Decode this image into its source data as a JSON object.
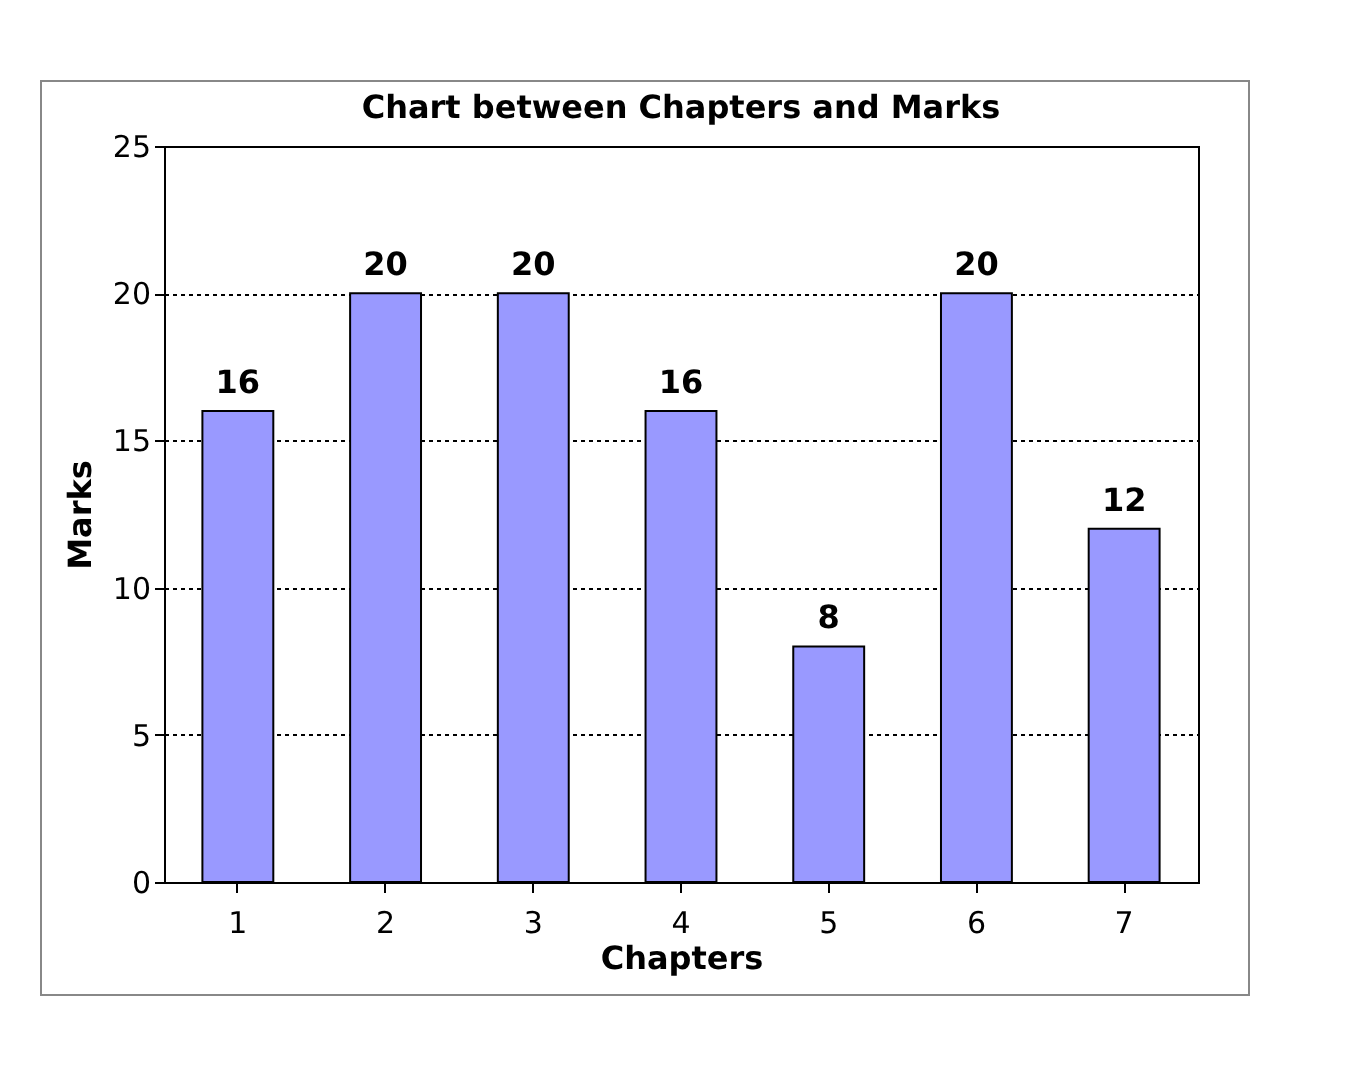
{
  "chart_data": {
    "type": "bar",
    "title": "Chart between Chapters and Marks",
    "xlabel": "Chapters",
    "ylabel": "Marks",
    "categories": [
      "1",
      "2",
      "3",
      "4",
      "5",
      "6",
      "7"
    ],
    "values": [
      16,
      20,
      20,
      16,
      8,
      20,
      12
    ],
    "color": "#9999ff",
    "ylim": [
      0,
      25
    ],
    "yticks": [
      0,
      5,
      10,
      15,
      20,
      25
    ],
    "grid": "y",
    "data_labels": true
  }
}
